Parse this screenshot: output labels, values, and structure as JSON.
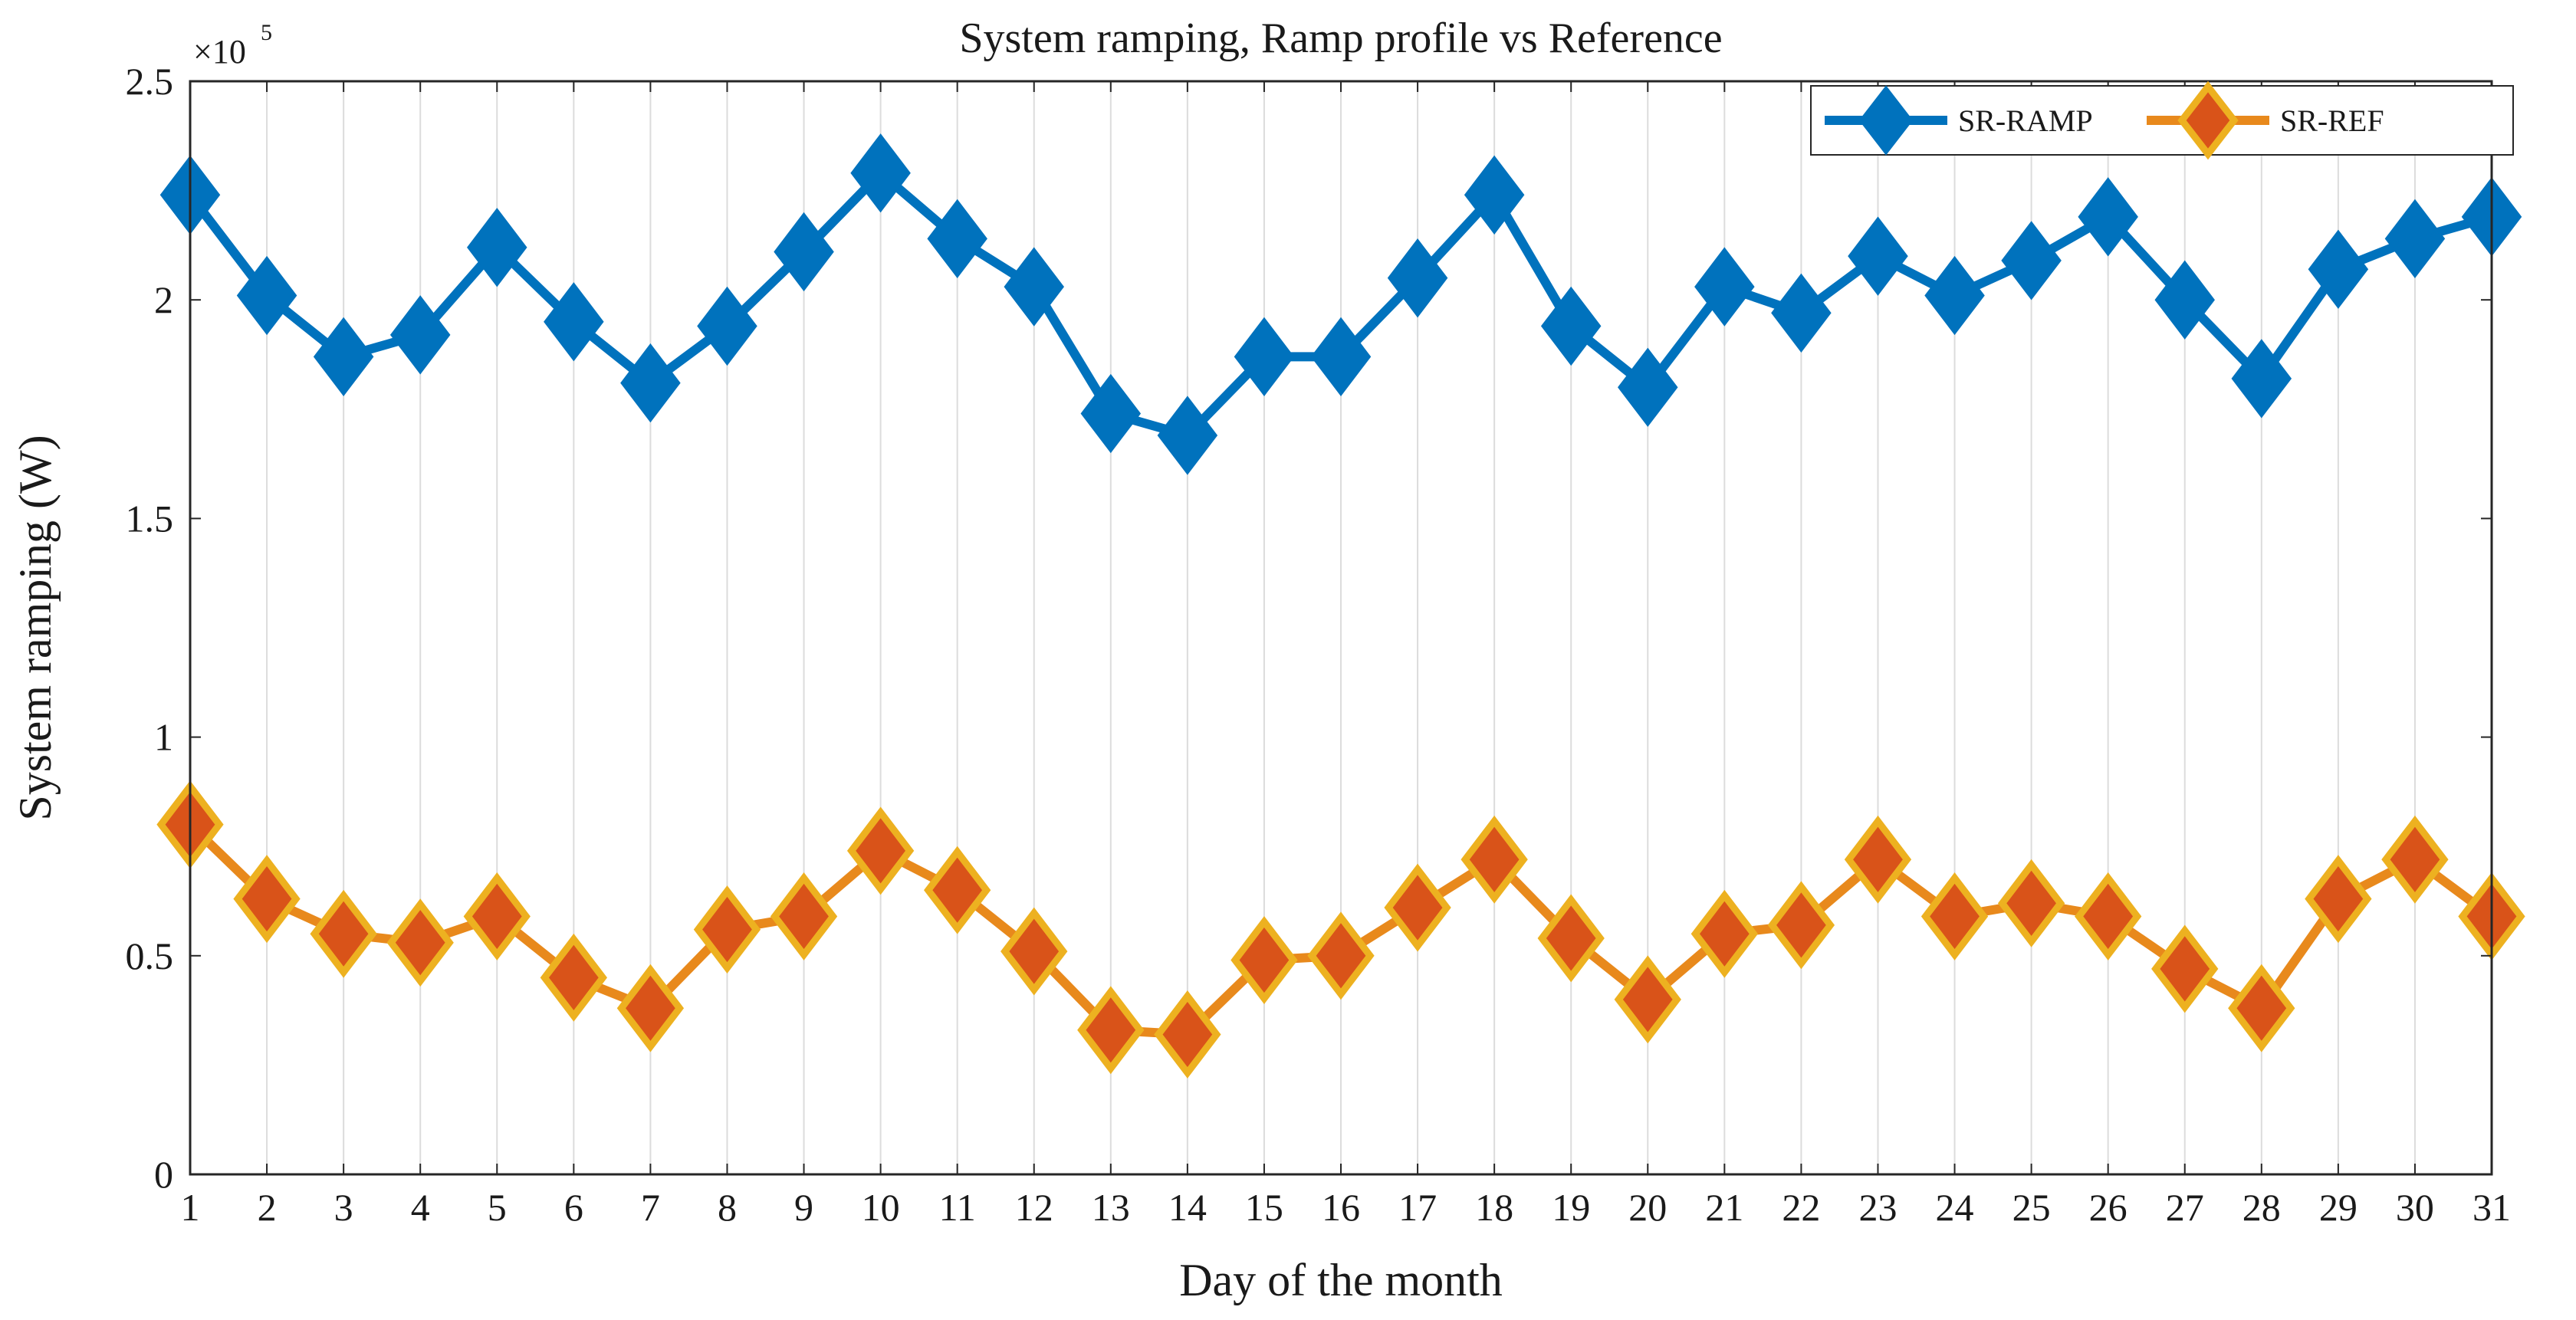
{
  "chart_data": {
    "type": "line",
    "title": "System ramping, Ramp profile vs Reference",
    "xlabel": "Day of the month",
    "ylabel": "System ramping (W)",
    "y_scale_label": {
      "base": "×10",
      "exponent": "5"
    },
    "x": [
      1,
      2,
      3,
      4,
      5,
      6,
      7,
      8,
      9,
      10,
      11,
      12,
      13,
      14,
      15,
      16,
      17,
      18,
      19,
      20,
      21,
      22,
      23,
      24,
      25,
      26,
      27,
      28,
      29,
      30,
      31
    ],
    "xlim": [
      1,
      31
    ],
    "ylim": [
      0,
      2.5
    ],
    "x_ticks": [
      1,
      2,
      3,
      4,
      5,
      6,
      7,
      8,
      9,
      10,
      11,
      12,
      13,
      14,
      15,
      16,
      17,
      18,
      19,
      20,
      21,
      22,
      23,
      24,
      25,
      26,
      27,
      28,
      29,
      30,
      31
    ],
    "y_ticks": [
      0,
      0.5,
      1,
      1.5,
      2,
      2.5
    ],
    "y_tick_labels": [
      "0",
      "0.5",
      "1",
      "1.5",
      "2",
      "2.5"
    ],
    "grid": "vertical",
    "legend_position": "top-right",
    "series": [
      {
        "name": "SR-RAMP",
        "color": "#0072bd",
        "marker": "diamond",
        "values": [
          2.24,
          2.01,
          1.87,
          1.92,
          2.12,
          1.95,
          1.81,
          1.94,
          2.11,
          2.29,
          2.14,
          2.03,
          1.74,
          1.69,
          1.87,
          1.87,
          2.05,
          2.24,
          1.94,
          1.8,
          2.03,
          1.97,
          2.1,
          2.01,
          2.09,
          2.19,
          2.0,
          1.82,
          2.07,
          2.14,
          2.19
        ]
      },
      {
        "name": "SR-REF",
        "color": "#d95319",
        "marker_edge": "#edb120",
        "marker": "diamond",
        "values": [
          0.8,
          0.63,
          0.55,
          0.53,
          0.59,
          0.45,
          0.38,
          0.56,
          0.59,
          0.74,
          0.65,
          0.51,
          0.33,
          0.32,
          0.49,
          0.5,
          0.61,
          0.72,
          0.54,
          0.4,
          0.55,
          0.57,
          0.72,
          0.59,
          0.62,
          0.59,
          0.47,
          0.38,
          0.63,
          0.72,
          0.59
        ]
      }
    ]
  }
}
